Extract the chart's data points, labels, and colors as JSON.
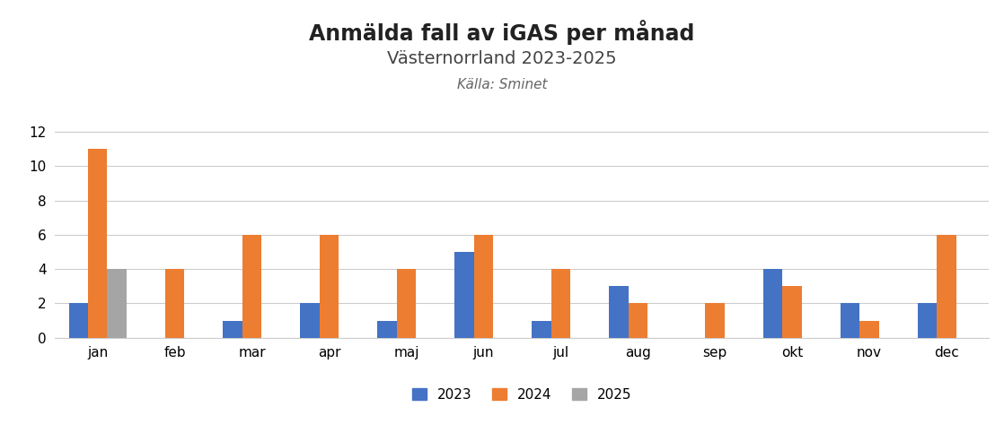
{
  "title": "Anmälda fall av iGAS per månad",
  "subtitle": "Västernorrland 2023-2025",
  "source": "Källa: Sminet",
  "months": [
    "jan",
    "feb",
    "mar",
    "apr",
    "maj",
    "jun",
    "jul",
    "aug",
    "sep",
    "okt",
    "nov",
    "dec"
  ],
  "series": {
    "2023": [
      2,
      0,
      1,
      2,
      1,
      5,
      1,
      3,
      0,
      4,
      2,
      2
    ],
    "2024": [
      11,
      4,
      6,
      6,
      4,
      6,
      4,
      2,
      2,
      3,
      1,
      6
    ],
    "2025": [
      4,
      0,
      0,
      0,
      0,
      0,
      0,
      0,
      0,
      0,
      0,
      0
    ]
  },
  "colors": {
    "2023": "#4472C4",
    "2024": "#ED7D31",
    "2025": "#A5A5A5"
  },
  "ylim": [
    0,
    13
  ],
  "yticks": [
    0,
    2,
    4,
    6,
    8,
    10,
    12
  ],
  "title_fontsize": 17,
  "subtitle_fontsize": 14,
  "source_fontsize": 11,
  "axis_fontsize": 11,
  "legend_fontsize": 11,
  "background_color": "#FFFFFF",
  "grid_color": "#CCCCCC"
}
